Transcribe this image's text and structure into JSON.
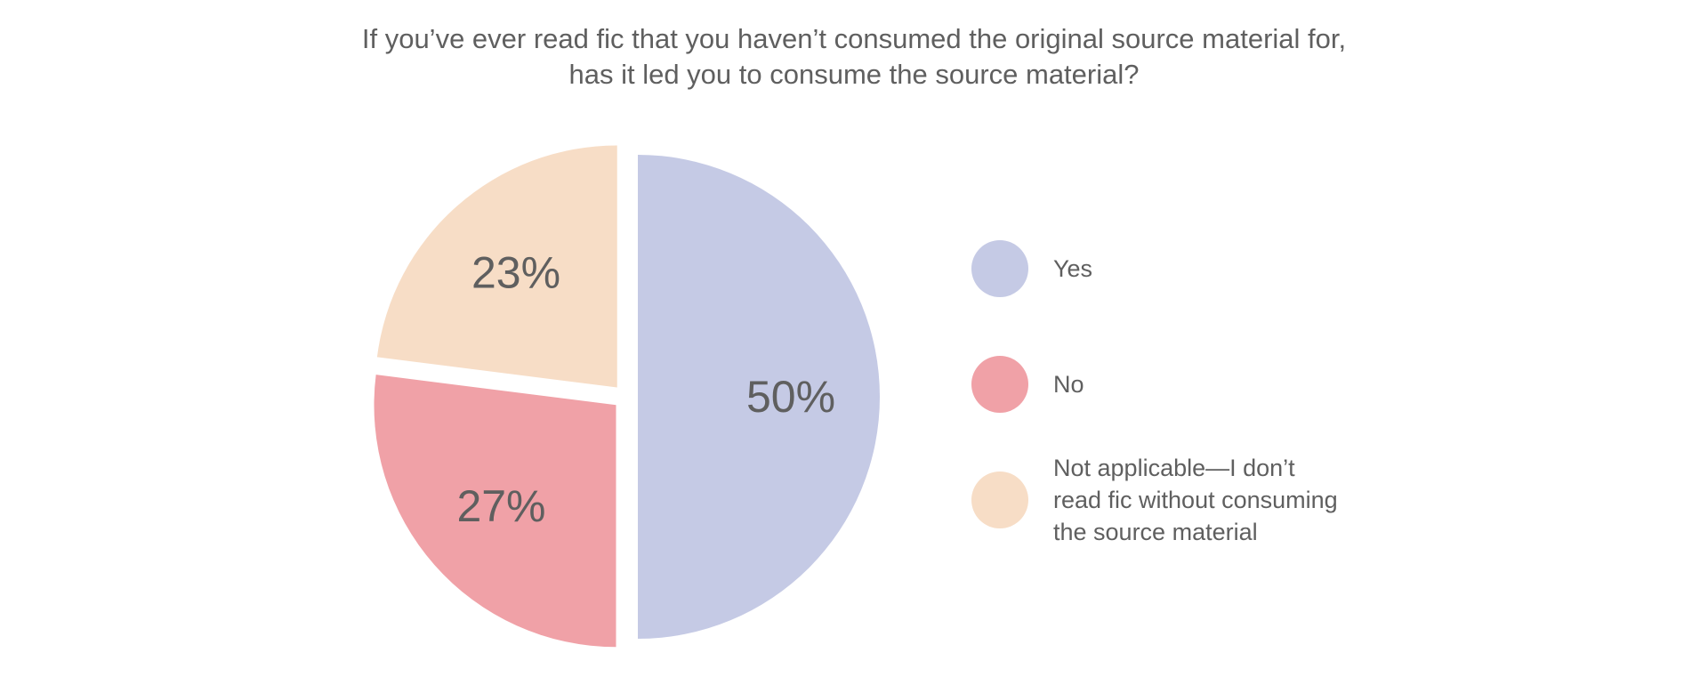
{
  "chart_data": {
    "type": "pie",
    "title_lines": [
      "If you’ve ever read fic that you haven’t consumed the original source material for,",
      "has it led you to consume the source material?"
    ],
    "slices": [
      {
        "name": "Yes",
        "value": 50,
        "label": "50%",
        "color": "#c5cae5"
      },
      {
        "name": "No",
        "value": 27,
        "label": "27%",
        "color": "#f0a1a7"
      },
      {
        "name": "Not applicable—I don’t\nread fic without consuming\nthe source material",
        "value": 23,
        "label": "23%",
        "color": "#f7ddc6"
      }
    ],
    "legend_position": "right",
    "exploded": true
  }
}
